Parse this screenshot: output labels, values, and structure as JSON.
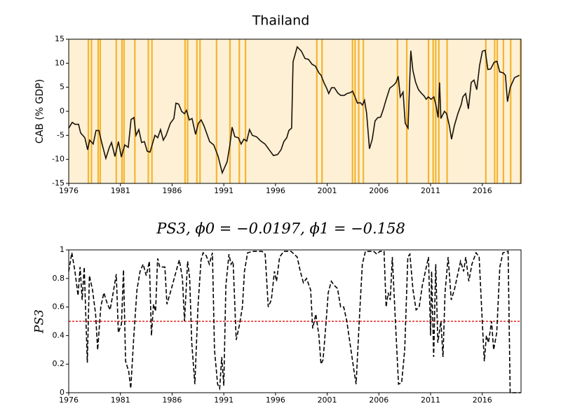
{
  "chart_data": [
    {
      "type": "line",
      "title": "Thailand",
      "ylabel": "CAB (% GDP)",
      "color": "#1a1208",
      "background": "#fdf0d5",
      "highlight_color": "#f5b52e",
      "highlights": [
        1977.9,
        1978.2,
        1978.85,
        1979.05,
        1980.6,
        1981.15,
        1981.35,
        1982.4,
        1983.7,
        1984.05,
        1987.25,
        1987.5,
        1988.4,
        1988.7,
        1990.3,
        1991.6,
        1992.5,
        1993.1,
        2000.0,
        2000.5,
        2003.45,
        2003.7,
        2004.05,
        2004.5,
        2007.8,
        2008.7,
        2010.8,
        2011.25,
        2011.5,
        2011.8,
        2012.6,
        2016.35,
        2017.2,
        2017.45,
        2018.05,
        2018.75,
        2019.7
      ],
      "x": [
        1976.0,
        1976.34,
        1976.61,
        1976.95,
        1977.15,
        1977.56,
        1977.83,
        1978.03,
        1978.37,
        1978.64,
        1978.92,
        1979.19,
        1979.59,
        1979.93,
        1980.14,
        1980.47,
        1980.81,
        1981.09,
        1981.42,
        1981.76,
        1982.03,
        1982.31,
        1982.51,
        1982.78,
        1983.05,
        1983.32,
        1983.59,
        1983.86,
        1984.07,
        1984.34,
        1984.61,
        1984.88,
        1985.15,
        1985.42,
        1985.83,
        1986.17,
        1986.37,
        1986.64,
        1986.92,
        1987.19,
        1987.39,
        1987.66,
        1987.93,
        1988.27,
        1988.54,
        1988.81,
        1989.08,
        1989.63,
        1990.03,
        1990.44,
        1990.85,
        1991.32,
        1991.59,
        1991.8,
        1992.07,
        1992.41,
        1992.68,
        1992.95,
        1993.22,
        1993.49,
        1993.76,
        1994.17,
        1994.58,
        1994.98,
        1995.39,
        1995.8,
        1996.2,
        1996.54,
        1996.81,
        1997.09,
        1997.29,
        1997.56,
        1997.7,
        1998.1,
        1998.51,
        1998.85,
        1999.19,
        1999.53,
        1999.86,
        2000.2,
        2000.41,
        2000.68,
        2000.95,
        2001.15,
        2001.42,
        2001.7,
        2002.03,
        2002.31,
        2002.65,
        2002.92,
        2003.25,
        2003.46,
        2003.73,
        2003.93,
        2004.2,
        2004.41,
        2004.61,
        2004.81,
        2005.09,
        2005.36,
        2005.63,
        2005.9,
        2006.17,
        2006.44,
        2006.71,
        2007.05,
        2007.46,
        2007.66,
        2007.87,
        2008.07,
        2008.34,
        2008.55,
        2008.82,
        2009.09,
        2009.29,
        2009.56,
        2009.83,
        2010.1,
        2010.37,
        2010.58,
        2010.78,
        2011.05,
        2011.32,
        2011.53,
        2011.73,
        2011.87,
        2012.0,
        2012.34,
        2012.55,
        2012.82,
        2013.03,
        2013.3,
        2013.64,
        2013.98,
        2014.12,
        2014.39,
        2014.66,
        2014.93,
        2015.2,
        2015.47,
        2015.74,
        2016.01,
        2016.28,
        2016.54,
        2016.81,
        2017.15,
        2017.42,
        2017.69,
        2018.03,
        2018.24,
        2018.44,
        2018.71,
        2019.12,
        2019.59
      ],
      "values": [
        -3.5,
        -2.3,
        -2.7,
        -2.7,
        -4.5,
        -5.5,
        -8,
        -6,
        -6.8,
        -4,
        -4,
        -6.5,
        -9.8,
        -7.5,
        -6.5,
        -9.4,
        -6.3,
        -9.5,
        -7,
        -7.5,
        -1.7,
        -1.3,
        -5,
        -3.8,
        -6.5,
        -6.3,
        -8.3,
        -8.5,
        -7,
        -5,
        -5.5,
        -3.8,
        -6,
        -5,
        -2.5,
        -1.5,
        1.7,
        1.5,
        0,
        -0.5,
        0.2,
        -1.8,
        -1.5,
        -4.8,
        -2.5,
        -1.8,
        -3,
        -6.3,
        -7,
        -9.3,
        -12.8,
        -10.5,
        -7,
        -3.3,
        -5.3,
        -5.5,
        -6.8,
        -5.8,
        -6.2,
        -3.8,
        -5,
        -5.3,
        -6.2,
        -6.8,
        -8,
        -9.2,
        -9,
        -8,
        -6.3,
        -5.5,
        -4,
        -3.5,
        10.3,
        13.4,
        12.5,
        11,
        10.8,
        9.8,
        9.4,
        8,
        7.5,
        6,
        4.8,
        3.7,
        4.9,
        4.9,
        3.8,
        3.3,
        3.3,
        3.7,
        3.9,
        4.2,
        2.8,
        1.7,
        1.8,
        1.3,
        2.3,
        -0.3,
        -7.8,
        -5.8,
        -2,
        -1.3,
        -1.2,
        0.5,
        2.5,
        4.8,
        5.5,
        6,
        7.3,
        3,
        4,
        -2.5,
        -3.5,
        12.6,
        8.5,
        6,
        4.5,
        3.8,
        3.2,
        2.5,
        3,
        2.5,
        3,
        1.2,
        -1.3,
        6,
        -1.5,
        0,
        -0.5,
        -3,
        -5.8,
        -3,
        -0.5,
        1.5,
        3,
        3.7,
        0.5,
        6,
        6.5,
        4.5,
        9.5,
        12.5,
        12.7,
        8.7,
        8.8,
        10.2,
        10.4,
        8.2,
        8,
        7.5,
        2,
        5,
        7,
        7.5
      ],
      "xlim": [
        1976,
        2019.75
      ],
      "xticks": [
        1976,
        1981,
        1986,
        1991,
        1996,
        2001,
        2006,
        2011,
        2016
      ],
      "ylim": [
        -15,
        15
      ],
      "yticks": [
        -15,
        -10,
        -5,
        0,
        5,
        10,
        15
      ]
    },
    {
      "type": "line",
      "title": "PS3, ϕ0 = −0.0197, ϕ1 = −0.158",
      "ylabel": "PS3",
      "color": "#000000",
      "dashed": true,
      "threshold": 0.5,
      "threshold_color": "#e8201a",
      "x": [
        1976.0,
        1976.3,
        1976.6,
        1976.9,
        1977.1,
        1977.3,
        1977.5,
        1977.8,
        1978.0,
        1978.3,
        1978.6,
        1978.8,
        1979.1,
        1979.4,
        1979.7,
        1980.0,
        1980.3,
        1980.6,
        1980.8,
        1981.1,
        1981.3,
        1981.5,
        1981.8,
        1982.0,
        1982.3,
        1982.6,
        1982.9,
        1983.2,
        1983.5,
        1983.8,
        1984.0,
        1984.2,
        1984.4,
        1984.6,
        1984.8,
        1985.3,
        1985.5,
        1985.9,
        1986.2,
        1986.5,
        1986.7,
        1987.0,
        1987.2,
        1987.5,
        1987.7,
        1987.9,
        1988.2,
        1988.5,
        1988.8,
        1989.0,
        1989.3,
        1989.6,
        1989.9,
        1990.1,
        1990.4,
        1990.6,
        1990.8,
        1991.0,
        1991.2,
        1991.5,
        1991.7,
        1991.9,
        1992.2,
        1992.5,
        1992.8,
        1993.0,
        1993.3,
        1993.8,
        1994.7,
        1995.0,
        1995.3,
        1995.6,
        1995.9,
        1996.1,
        1996.4,
        1996.8,
        1997.5,
        1997.8,
        1998.1,
        1998.4,
        1998.7,
        1999.0,
        1999.4,
        1999.6,
        1999.9,
        2000.2,
        2000.4,
        2000.6,
        2000.9,
        2001.1,
        2001.4,
        2001.7,
        2002.0,
        2002.3,
        2002.6,
        2002.9,
        2003.3,
        2003.6,
        2003.8,
        2004.1,
        2004.4,
        2004.7,
        2005.5,
        2005.8,
        2006.1,
        2006.5,
        2006.7,
        2006.9,
        2007.1,
        2007.3,
        2007.6,
        2007.9,
        2008.2,
        2008.5,
        2008.8,
        2009.0,
        2009.3,
        2009.6,
        2009.9,
        2010.2,
        2010.5,
        2010.8,
        2011.0,
        2011.1,
        2011.3,
        2011.5,
        2011.7,
        2012.0,
        2012.2,
        2012.4,
        2012.7,
        2013.0,
        2013.3,
        2013.6,
        2013.9,
        2014.2,
        2014.4,
        2014.7,
        2015.0,
        2015.4,
        2015.7,
        2016.0,
        2016.2,
        2016.4,
        2016.6,
        2016.9,
        2017.1,
        2017.4,
        2017.7,
        2018.0,
        2018.5,
        2018.7,
        2019.7
      ],
      "values": [
        0.85,
        0.98,
        0.85,
        0.68,
        0.88,
        0.65,
        0.88,
        0.21,
        0.82,
        0.72,
        0.55,
        0.3,
        0.6,
        0.7,
        0.63,
        0.58,
        0.7,
        0.83,
        0.42,
        0.48,
        0.86,
        0.22,
        0.15,
        0.03,
        0.4,
        0.72,
        0.85,
        0.9,
        0.82,
        0.92,
        0.4,
        0.62,
        0.57,
        0.94,
        0.88,
        0.88,
        0.62,
        0.72,
        0.8,
        0.88,
        0.93,
        0.8,
        0.5,
        0.92,
        0.8,
        0.35,
        0.06,
        0.6,
        0.93,
        0.98,
        0.96,
        0.9,
        0.98,
        0.3,
        0.06,
        0.03,
        0.25,
        0.05,
        0.75,
        0.97,
        0.9,
        0.92,
        0.37,
        0.47,
        0.6,
        0.85,
        0.98,
        0.99,
        0.99,
        0.97,
        0.6,
        0.65,
        0.85,
        0.78,
        0.95,
        0.99,
        0.99,
        0.97,
        0.95,
        0.85,
        0.77,
        0.8,
        0.72,
        0.45,
        0.55,
        0.4,
        0.2,
        0.23,
        0.5,
        0.7,
        0.78,
        0.75,
        0.73,
        0.6,
        0.6,
        0.5,
        0.3,
        0.15,
        0.06,
        0.5,
        0.9,
        0.99,
        0.99,
        0.97,
        0.99,
        0.99,
        0.6,
        0.7,
        0.65,
        0.95,
        0.5,
        0.06,
        0.07,
        0.3,
        0.95,
        0.97,
        0.72,
        0.58,
        0.6,
        0.75,
        0.85,
        0.95,
        0.4,
        0.85,
        0.25,
        0.9,
        0.35,
        0.5,
        0.25,
        0.7,
        0.95,
        0.65,
        0.72,
        0.82,
        0.92,
        0.85,
        0.95,
        0.78,
        0.9,
        0.98,
        0.95,
        0.5,
        0.22,
        0.4,
        0.35,
        0.5,
        0.3,
        0.42,
        0.88,
        0.98,
        0.99,
        0,
        0
      ],
      "xlim": [
        1976,
        2019.75
      ],
      "xticks": [
        1976,
        1981,
        1986,
        1991,
        1996,
        2001,
        2006,
        2011,
        2016
      ],
      "ylim": [
        0,
        1
      ],
      "yticks": [
        0,
        0.2,
        0.4,
        0.6,
        0.8,
        1
      ]
    }
  ]
}
